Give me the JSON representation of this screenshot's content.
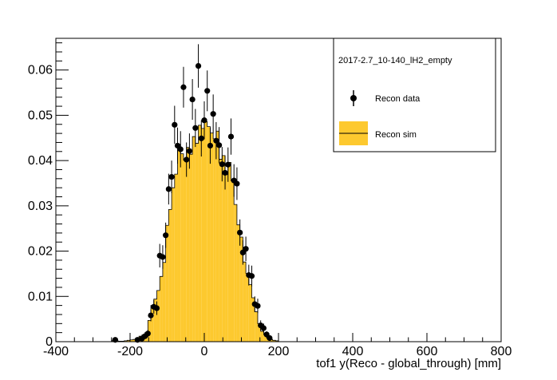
{
  "chart_data": {
    "type": "histogram",
    "title": "",
    "xlabel": "tof1 y(Reco - global_through) [mm]",
    "ylabel": "",
    "xlim": [
      -400,
      800
    ],
    "ylim": [
      0,
      0.067
    ],
    "xticks": [
      "-400",
      "-200",
      "0",
      "200",
      "400",
      "600",
      "800"
    ],
    "yticks": [
      "0",
      "0.01",
      "0.02",
      "0.03",
      "0.04",
      "0.05",
      "0.06"
    ],
    "bin_width": 8,
    "legend": {
      "placement": "top-right",
      "header": "2017-2.7_10-140_lH2_empty",
      "entries": [
        {
          "label": "Recon data",
          "style": "marker-errorbar"
        },
        {
          "label": "Recon sim",
          "style": "filled-histogram"
        }
      ]
    },
    "series": [
      {
        "name": "Recon sim",
        "color": "#fdc92f",
        "bins": [
          [
            -244,
            0.0003
          ],
          [
            -236,
            0.0002
          ],
          [
            -228,
            0.0001
          ],
          [
            -220,
            0.0001
          ],
          [
            -212,
            0.0002
          ],
          [
            -204,
            0.0003
          ],
          [
            -196,
            0.0004
          ],
          [
            -188,
            0.0005
          ],
          [
            -180,
            0.0008
          ],
          [
            -172,
            0.0012
          ],
          [
            -164,
            0.0015
          ],
          [
            -156,
            0.002
          ],
          [
            -148,
            0.0047
          ],
          [
            -140,
            0.008
          ],
          [
            -132,
            0.0094
          ],
          [
            -124,
            0.0113
          ],
          [
            -116,
            0.0144
          ],
          [
            -108,
            0.0175
          ],
          [
            -100,
            0.0257
          ],
          [
            -92,
            0.0292
          ],
          [
            -84,
            0.034
          ],
          [
            -76,
            0.037
          ],
          [
            -68,
            0.0436
          ],
          [
            -60,
            0.0415
          ],
          [
            -52,
            0.0401
          ],
          [
            -44,
            0.0429
          ],
          [
            -36,
            0.0414
          ],
          [
            -28,
            0.0453
          ],
          [
            -20,
            0.0438
          ],
          [
            -12,
            0.0478
          ],
          [
            -4,
            0.0471
          ],
          [
            4,
            0.0486
          ],
          [
            12,
            0.0475
          ],
          [
            20,
            0.0461
          ],
          [
            28,
            0.0448
          ],
          [
            36,
            0.0465
          ],
          [
            44,
            0.0403
          ],
          [
            52,
            0.0411
          ],
          [
            60,
            0.0369
          ],
          [
            68,
            0.0396
          ],
          [
            76,
            0.0355
          ],
          [
            84,
            0.0303
          ],
          [
            92,
            0.0258
          ],
          [
            100,
            0.0231
          ],
          [
            108,
            0.0176
          ],
          [
            116,
            0.0151
          ],
          [
            124,
            0.0126
          ],
          [
            132,
            0.0097
          ],
          [
            140,
            0.0066
          ],
          [
            148,
            0.004
          ],
          [
            156,
            0.0023
          ],
          [
            164,
            0.0016
          ],
          [
            172,
            0.0008
          ],
          [
            180,
            0.0005
          ],
          [
            188,
            0.0003
          ],
          [
            196,
            0.0002
          ]
        ]
      },
      {
        "name": "Recon data",
        "color": "#000000",
        "points": [
          [
            -240,
            0.0004,
            0.0004
          ],
          [
            -180,
            0.0004,
            0.0004
          ],
          [
            -168,
            0.0007,
            0.0005
          ],
          [
            -160,
            0.0012,
            0.0006
          ],
          [
            -152,
            0.0018,
            0.0008
          ],
          [
            -144,
            0.0058,
            0.0013
          ],
          [
            -136,
            0.0077,
            0.0015
          ],
          [
            -128,
            0.0074,
            0.0015
          ],
          [
            -120,
            0.019,
            0.0026
          ],
          [
            -112,
            0.0187,
            0.0026
          ],
          [
            -104,
            0.0235,
            0.0028
          ],
          [
            -96,
            0.0337,
            0.0034
          ],
          [
            -88,
            0.0364,
            0.0036
          ],
          [
            -80,
            0.0479,
            0.0042
          ],
          [
            -72,
            0.0433,
            0.004
          ],
          [
            -64,
            0.0425,
            0.004
          ],
          [
            -56,
            0.0562,
            0.0045
          ],
          [
            -48,
            0.0402,
            0.0038
          ],
          [
            -40,
            0.0421,
            0.0039
          ],
          [
            -32,
            0.0535,
            0.0045
          ],
          [
            -24,
            0.0472,
            0.0042
          ],
          [
            -16,
            0.0609,
            0.0048
          ],
          [
            -8,
            0.0449,
            0.004
          ],
          [
            0,
            0.0489,
            0.0042
          ],
          [
            8,
            0.0554,
            0.0045
          ],
          [
            16,
            0.0433,
            0.004
          ],
          [
            24,
            0.0503,
            0.0043
          ],
          [
            32,
            0.0444,
            0.0041
          ],
          [
            40,
            0.0434,
            0.004
          ],
          [
            48,
            0.0392,
            0.0038
          ],
          [
            56,
            0.0373,
            0.0037
          ],
          [
            64,
            0.0391,
            0.0038
          ],
          [
            72,
            0.0453,
            0.004
          ],
          [
            80,
            0.0356,
            0.0036
          ],
          [
            88,
            0.0349,
            0.0036
          ],
          [
            96,
            0.0241,
            0.0029
          ],
          [
            104,
            0.0197,
            0.0027
          ],
          [
            112,
            0.0205,
            0.0027
          ],
          [
            120,
            0.0147,
            0.0023
          ],
          [
            128,
            0.0145,
            0.0023
          ],
          [
            136,
            0.0083,
            0.0017
          ],
          [
            144,
            0.0079,
            0.0016
          ],
          [
            152,
            0.0036,
            0.0011
          ],
          [
            160,
            0.003,
            0.001
          ],
          [
            168,
            0.0016,
            0.0007
          ],
          [
            176,
            0.0008,
            0.0005
          ]
        ]
      }
    ]
  }
}
